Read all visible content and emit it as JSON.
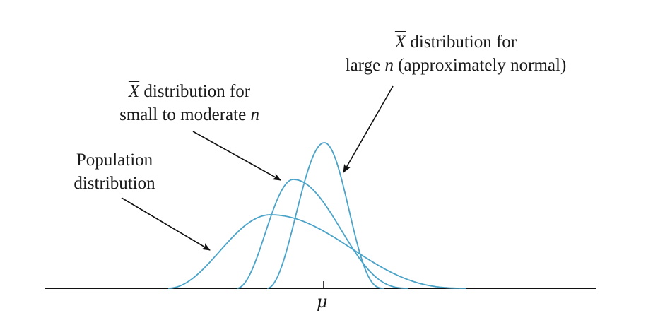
{
  "labels": {
    "population": {
      "line1": "Population",
      "line2": "distribution"
    },
    "small_n": {
      "symbol": "X",
      "line1_rest": " distribution for",
      "line2_prefix": "small to moderate ",
      "line2_var": "n"
    },
    "large_n": {
      "symbol": "X",
      "line1_rest": " distribution for",
      "line2_prefix": "large ",
      "line2_var": "n",
      "line2_suffix": " (approximately normal)"
    },
    "axis_mark": "μ"
  },
  "colors": {
    "curve": "#4aa3c8",
    "axis": "#111111",
    "arrow": "#111111",
    "text": "#1a1a1a"
  }
}
